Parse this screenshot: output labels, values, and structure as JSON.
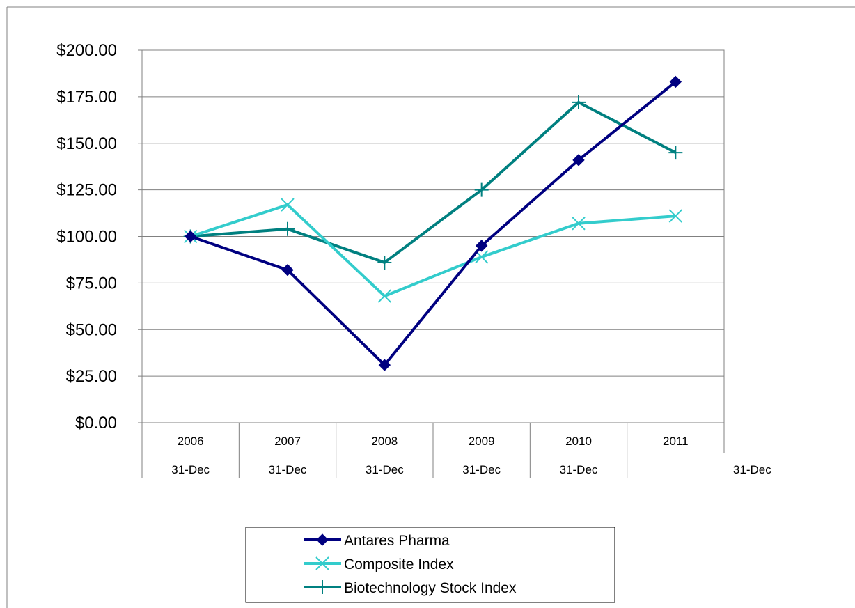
{
  "chart_data": {
    "type": "line",
    "categories": [
      "2006",
      "2007",
      "2008",
      "2009",
      "2010",
      "2011"
    ],
    "sub_labels": [
      "31-Dec",
      "31-Dec",
      "31-Dec",
      "31-Dec",
      "31-Dec",
      "31-Dec"
    ],
    "y_tick_labels": [
      "$0.00",
      "$25.00",
      "$50.00",
      "$75.00",
      "$100.00",
      "$125.00",
      "$150.00",
      "$175.00",
      "$200.00"
    ],
    "ylim": [
      0,
      200
    ],
    "grid": true,
    "legend_position": "bottom",
    "series": [
      {
        "name": "Antares Pharma",
        "color": "#000080",
        "marker": "diamond",
        "values": [
          100,
          82,
          31,
          95,
          141,
          183
        ]
      },
      {
        "name": "Composite Index",
        "color": "#33CCCC",
        "marker": "x",
        "values": [
          100,
          117,
          68,
          89,
          107,
          111
        ]
      },
      {
        "name": "Biotechnology Stock Index",
        "color": "#008080",
        "marker": "plus",
        "values": [
          100,
          104,
          86,
          125,
          172,
          145
        ]
      }
    ]
  }
}
